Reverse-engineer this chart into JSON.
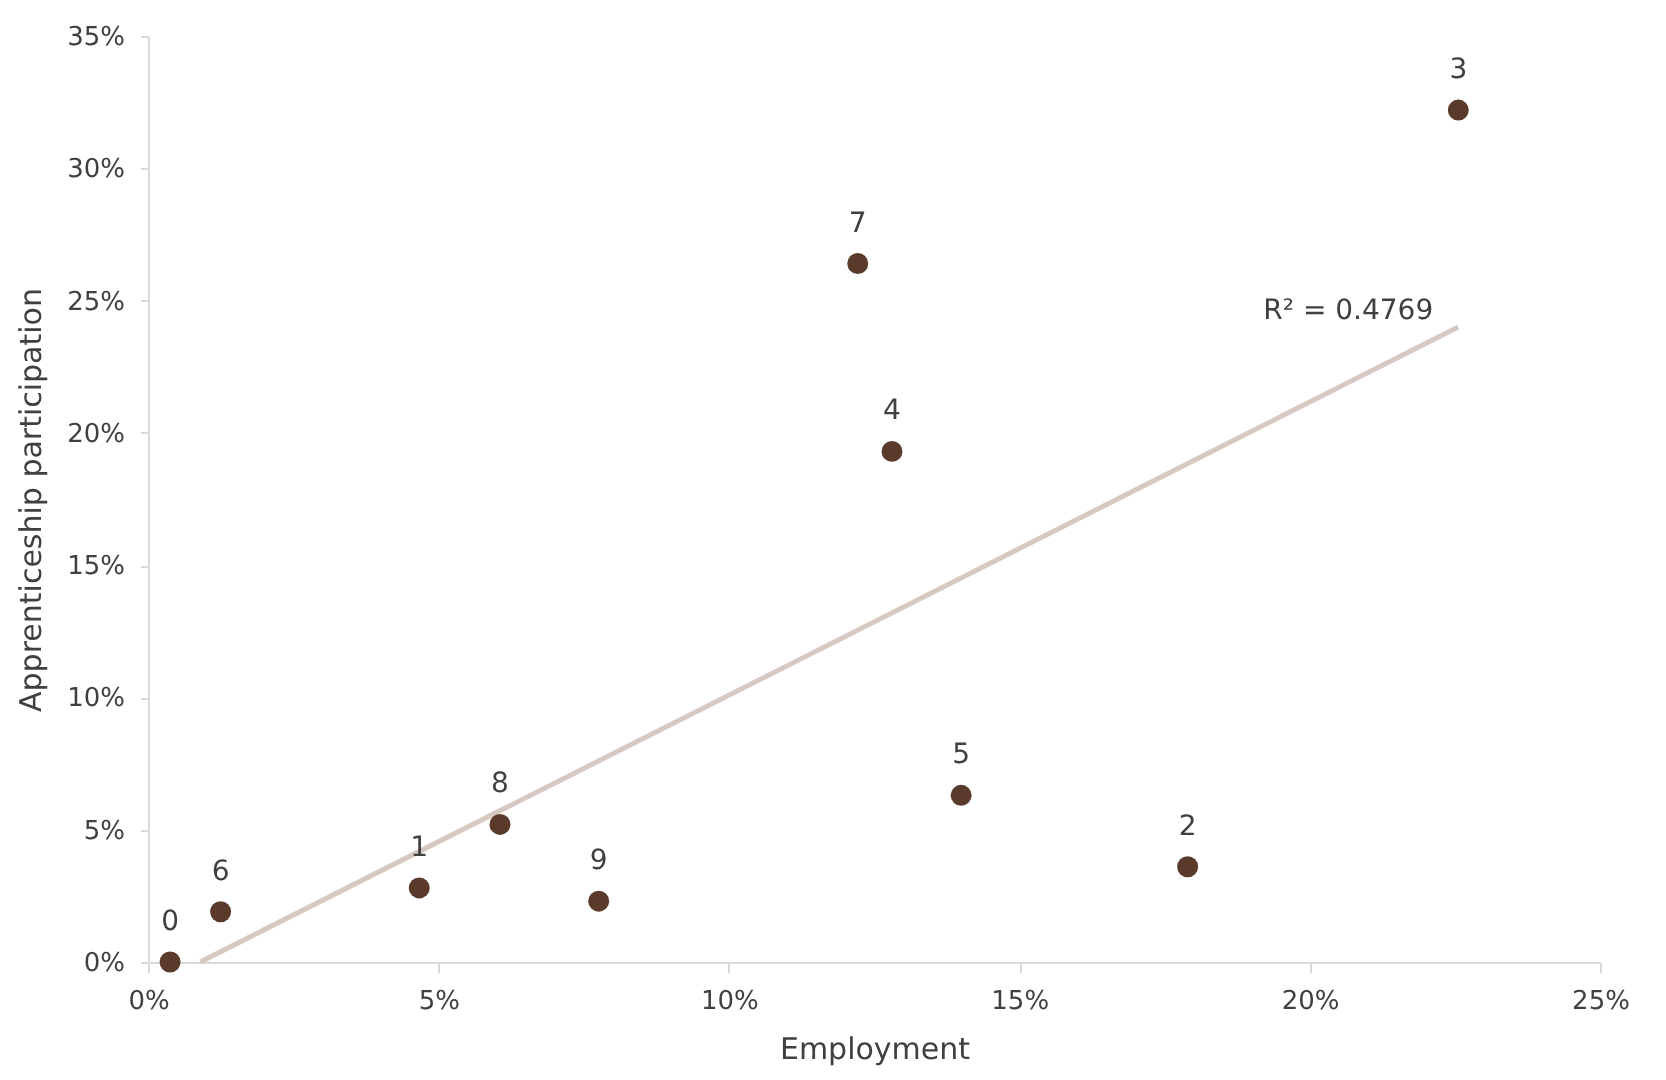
{
  "chart_data": {
    "type": "scatter",
    "xlabel": "Employment",
    "ylabel": "Apprenticeship participation",
    "xlim": [
      0,
      25
    ],
    "ylim": [
      0,
      35
    ],
    "xticks": [
      {
        "value": 0,
        "label": "0%"
      },
      {
        "value": 5,
        "label": "5%"
      },
      {
        "value": 10,
        "label": "10%"
      },
      {
        "value": 15,
        "label": "15%"
      },
      {
        "value": 20,
        "label": "20%"
      },
      {
        "value": 25,
        "label": "25%"
      }
    ],
    "yticks": [
      {
        "value": 0,
        "label": "0%"
      },
      {
        "value": 5,
        "label": "5%"
      },
      {
        "value": 10,
        "label": "10%"
      },
      {
        "value": 15,
        "label": "15%"
      },
      {
        "value": 20,
        "label": "20%"
      },
      {
        "value": 25,
        "label": "25%"
      },
      {
        "value": 30,
        "label": "30%"
      },
      {
        "value": 35,
        "label": "35%"
      }
    ],
    "marker": "circle",
    "series": [
      {
        "color": "#5a3a2a",
        "x": [
          0.38,
          1.25,
          4.67,
          6.06,
          7.76,
          12.22,
          12.81,
          14.0,
          17.9,
          22.56
        ],
        "values": [
          0.0,
          1.9,
          2.8,
          5.2,
          2.3,
          26.4,
          19.3,
          6.3,
          3.6,
          32.2
        ]
      },
      {
        "type": "line",
        "color": "#d7c8c2",
        "marker": "none",
        "line_style": "solid",
        "x": [
          0.9,
          22.56
        ],
        "values": [
          0.0,
          24.0
        ]
      }
    ],
    "annotations": [
      {
        "text": "0",
        "x": 0.38,
        "y": 0.0
      },
      {
        "text": "6",
        "x": 1.25,
        "y": 1.9
      },
      {
        "text": "1",
        "x": 4.67,
        "y": 2.8
      },
      {
        "text": "8",
        "x": 6.06,
        "y": 5.2
      },
      {
        "text": "9",
        "x": 7.76,
        "y": 2.3
      },
      {
        "text": "7",
        "x": 12.22,
        "y": 26.4
      },
      {
        "text": "4",
        "x": 12.81,
        "y": 19.3
      },
      {
        "text": "5",
        "x": 14.0,
        "y": 6.3
      },
      {
        "text": "2",
        "x": 17.9,
        "y": 3.6
      },
      {
        "text": "3",
        "x": 22.56,
        "y": 32.2
      },
      {
        "text": "R² = 0.4769",
        "x": 22.56,
        "y": 24.0
      }
    ]
  }
}
